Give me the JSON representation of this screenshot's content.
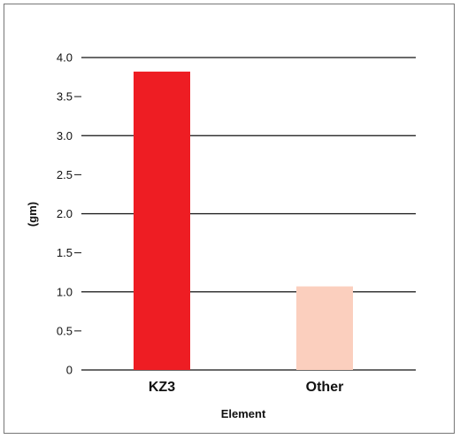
{
  "chart_data": {
    "type": "bar",
    "categories": [
      "KZ3",
      "Other"
    ],
    "values": [
      3.82,
      1.07
    ],
    "colors": [
      "#ee1d23",
      "#fbcfbe"
    ],
    "xlabel": "Element",
    "ylabel": "(gm)",
    "ylim": [
      0,
      4.0
    ],
    "yticks": [
      "0",
      "0.5",
      "1.0",
      "1.5",
      "2.0",
      "2.5",
      "3.0",
      "3.5",
      "4.0"
    ],
    "ytick_values": [
      0,
      0.5,
      1.0,
      1.5,
      2.0,
      2.5,
      3.0,
      3.5,
      4.0
    ],
    "gridlines_at": [
      1.0,
      2.0,
      3.0,
      4.0
    ],
    "grid": true,
    "legend": "none"
  }
}
